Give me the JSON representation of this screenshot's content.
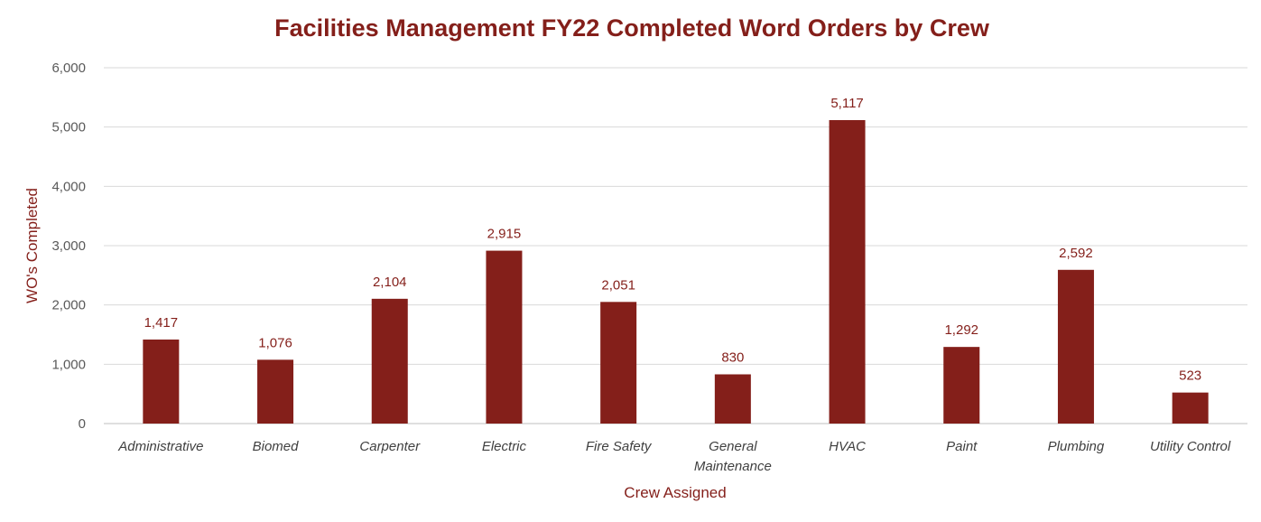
{
  "chart_data": {
    "type": "bar",
    "title": "Facilities Management FY22 Completed Word Orders by Crew",
    "xlabel": "Crew Assigned",
    "ylabel": "WO's Completed",
    "categories": [
      "Administrative",
      "Biomed",
      "Carpenter",
      "Electric",
      "Fire Safety",
      "General Maintenance",
      "HVAC",
      "Paint",
      "Plumbing",
      "Utility Control"
    ],
    "values": [
      1417,
      1076,
      2104,
      2915,
      2051,
      830,
      5117,
      1292,
      2592,
      523
    ],
    "value_labels": [
      "1,417",
      "1,076",
      "2,104",
      "2,915",
      "2,051",
      "830",
      "5,117",
      "1,292",
      "2,592",
      "523"
    ],
    "ylim": [
      0,
      6000
    ],
    "yticks": [
      0,
      1000,
      2000,
      3000,
      4000,
      5000,
      6000
    ],
    "ytick_labels": [
      "0",
      "1,000",
      "2,000",
      "3,000",
      "4,000",
      "5,000",
      "6,000"
    ],
    "grid": true,
    "legend": "none",
    "colors": {
      "bar": "#841f1a",
      "title": "#841f1a",
      "grid": "#d9d9d9",
      "label": "#841f1a"
    }
  }
}
